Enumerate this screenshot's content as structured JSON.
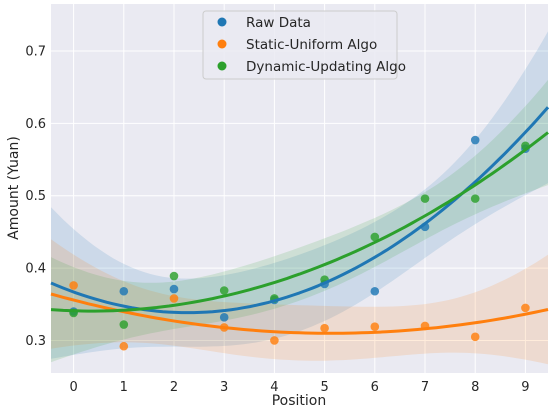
{
  "chart_data": {
    "type": "scatter",
    "title": "",
    "xlabel": "Position",
    "ylabel": "Amount (Yuan)",
    "xlim": [
      -0.45,
      9.45
    ],
    "ylim": [
      0.255,
      0.765
    ],
    "x_ticks": [
      0,
      1,
      2,
      3,
      4,
      5,
      6,
      7,
      8,
      9
    ],
    "y_ticks": [
      0.3,
      0.4,
      0.5,
      0.6,
      0.7
    ],
    "y_tick_labels": [
      "0.3",
      "0.4",
      "0.5",
      "0.6",
      "0.7"
    ],
    "grid": true,
    "legend_position": "top-center",
    "fit": "quadratic regression with shaded confidence band",
    "series": [
      {
        "name": "Raw Data",
        "color": "#1f77b4",
        "x": [
          0,
          1,
          2,
          3,
          4,
          5,
          6,
          7,
          8,
          9
        ],
        "y": [
          0.34,
          0.368,
          0.371,
          0.332,
          0.356,
          0.378,
          0.368,
          0.457,
          0.577,
          0.565
        ]
      },
      {
        "name": "Static-Uniform Algo",
        "color": "#ff7f0e",
        "x": [
          0,
          1,
          2,
          3,
          4,
          5,
          6,
          7,
          8,
          9
        ],
        "y": [
          0.376,
          0.292,
          0.358,
          0.318,
          0.3,
          0.317,
          0.319,
          0.32,
          0.305,
          0.345
        ]
      },
      {
        "name": "Dynamic-Updating Algo",
        "color": "#2ca02c",
        "x": [
          0,
          1,
          2,
          3,
          4,
          5,
          6,
          7,
          8,
          9
        ],
        "y": [
          0.338,
          0.322,
          0.389,
          0.369,
          0.358,
          0.384,
          0.443,
          0.496,
          0.496,
          0.569
        ]
      }
    ]
  }
}
